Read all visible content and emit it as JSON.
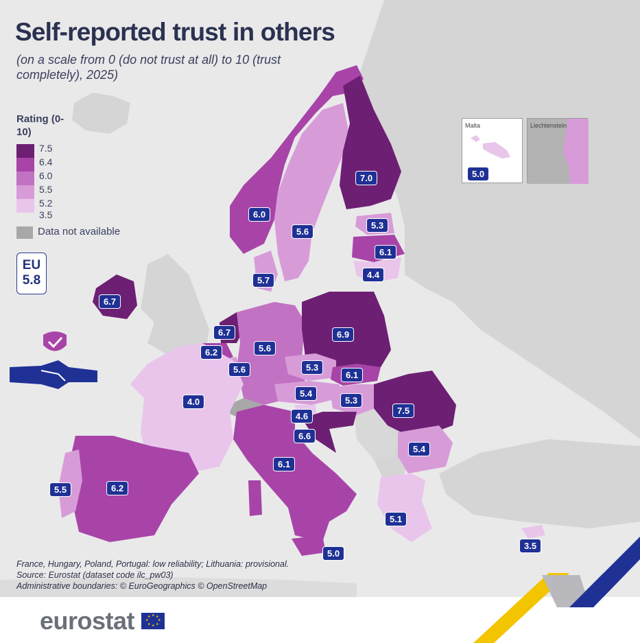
{
  "title": "Self-reported trust in others",
  "subtitle": "(on a scale from 0 (do not trust at all) to 10 (trust completely), 2025)",
  "legend": {
    "title": "Rating (0-10)",
    "breaks": [
      "7.5",
      "6.4",
      "6.0",
      "5.5",
      "5.2",
      "3.5"
    ],
    "colors": [
      "#6d1f73",
      "#a844a8",
      "#c272c3",
      "#d79cd8",
      "#e9c5eb"
    ],
    "na_label": "Data not available",
    "na_color": "#a8a8a8"
  },
  "eu": {
    "label": "EU",
    "value": "5.8"
  },
  "countries": [
    {
      "name": "Finland",
      "value": "7.0"
    },
    {
      "name": "Norway",
      "value": "6.0"
    },
    {
      "name": "Sweden",
      "value": "5.6"
    },
    {
      "name": "Estonia",
      "value": "5.3"
    },
    {
      "name": "Latvia",
      "value": "6.1"
    },
    {
      "name": "Lithuania",
      "value": "4.4"
    },
    {
      "name": "Denmark",
      "value": "5.7"
    },
    {
      "name": "Ireland",
      "value": "6.7"
    },
    {
      "name": "Netherlands",
      "value": "6.7"
    },
    {
      "name": "Belgium",
      "value": "6.2"
    },
    {
      "name": "Luxembourg",
      "value": "5.6"
    },
    {
      "name": "Germany",
      "value": "5.6"
    },
    {
      "name": "Poland",
      "value": "6.9"
    },
    {
      "name": "Czechia",
      "value": "5.3"
    },
    {
      "name": "Slovakia",
      "value": "6.1"
    },
    {
      "name": "Austria",
      "value": "5.4"
    },
    {
      "name": "Hungary",
      "value": "5.3"
    },
    {
      "name": "Slovenia",
      "value": "4.6"
    },
    {
      "name": "Croatia",
      "value": "6.6"
    },
    {
      "name": "Romania",
      "value": "7.5"
    },
    {
      "name": "Bulgaria",
      "value": "5.4"
    },
    {
      "name": "France",
      "value": "4.0"
    },
    {
      "name": "Italy",
      "value": "6.1"
    },
    {
      "name": "Spain",
      "value": "6.2"
    },
    {
      "name": "Portugal",
      "value": "5.5"
    },
    {
      "name": "Greece",
      "value": "5.1"
    },
    {
      "name": "Malta",
      "value": "5.0"
    },
    {
      "name": "Cyprus",
      "value": "3.5"
    }
  ],
  "insets": {
    "malta": {
      "label": "Malta",
      "value": "5.0"
    },
    "liechtenstein": {
      "label": "Liechtenstein"
    }
  },
  "notes": [
    "France, Hungary, Poland, Portugal: low reliability; Lithuania: provisional.",
    "Source: Eurostat (dataset code ilc_pw03)",
    "Administrative boundaries: © EuroGeographics © OpenStreetMap"
  ],
  "footer": {
    "logo": "eurostat"
  }
}
